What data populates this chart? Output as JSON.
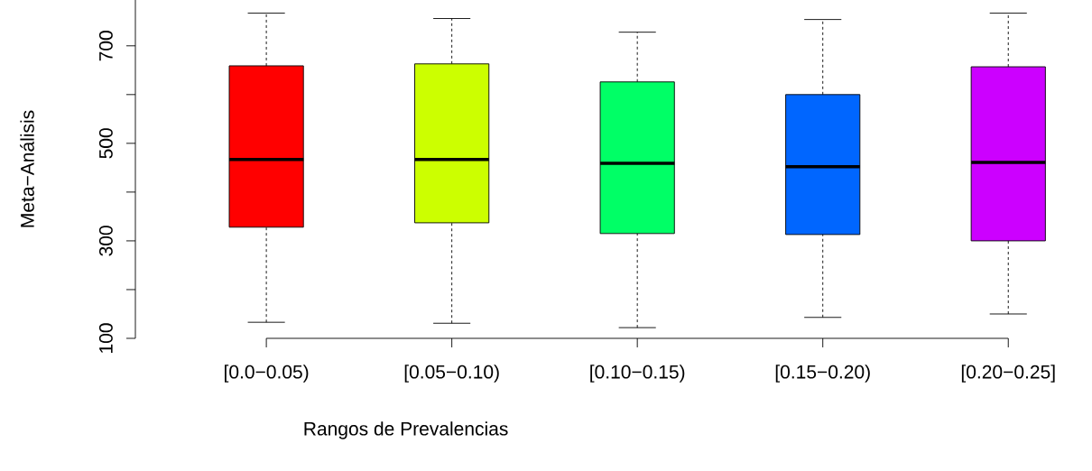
{
  "chart_data": {
    "type": "box",
    "xlabel": "Rangos de Prevalencias",
    "ylabel": "Meta−Análisis",
    "categories": [
      "[0.0−0.05)",
      "[0.05−0.10)",
      "[0.10−0.15)",
      "[0.15−0.20)",
      "[0.20−0.25]"
    ],
    "colors": [
      "#ff0000",
      "#ccff00",
      "#00ff66",
      "#0066ff",
      "#cc00ff"
    ],
    "boxes": [
      {
        "low": 133,
        "q1": 328,
        "median": 467,
        "q3": 659,
        "high": 767
      },
      {
        "low": 131,
        "q1": 337,
        "median": 467,
        "q3": 663,
        "high": 756
      },
      {
        "low": 122,
        "q1": 315,
        "median": 459,
        "q3": 626,
        "high": 728
      },
      {
        "low": 143,
        "q1": 313,
        "median": 452,
        "q3": 600,
        "high": 754
      },
      {
        "low": 150,
        "q1": 300,
        "median": 461,
        "q3": 657,
        "high": 767
      }
    ],
    "ylim": [
      100,
      794
    ],
    "yticks": [
      100,
      300,
      500,
      700
    ]
  }
}
